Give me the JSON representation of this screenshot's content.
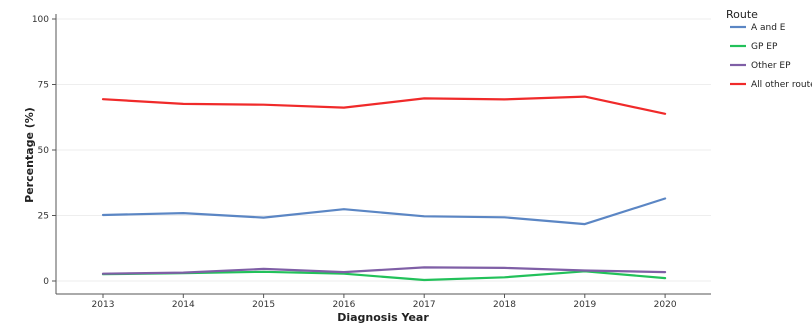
{
  "chart_data": {
    "type": "line",
    "xlabel": "Diagnosis Year",
    "ylabel": "Percentage (%)",
    "x": [
      "2013",
      "2014",
      "2015",
      "2016",
      "2017",
      "2018",
      "2019",
      "2020"
    ],
    "ylim": [
      0,
      100
    ],
    "yticks": [
      "0",
      "25",
      "50",
      "75",
      "100"
    ],
    "grid": "horizontal",
    "legend": {
      "title": "Route",
      "placement": "right"
    },
    "series": [
      {
        "name": "A and E",
        "color": "#5b86c4",
        "values": [
          25.2,
          25.9,
          24.2,
          27.4,
          24.7,
          24.3,
          21.7,
          31.5
        ]
      },
      {
        "name": "GP EP",
        "color": "#22c15a",
        "values": [
          2.6,
          3.0,
          3.5,
          2.8,
          0.4,
          1.4,
          3.7,
          1.1
        ]
      },
      {
        "name": "Other EP",
        "color": "#7f5fa6",
        "values": [
          2.8,
          3.2,
          4.6,
          3.4,
          5.2,
          5.0,
          4.0,
          3.4
        ]
      },
      {
        "name": "All other routes",
        "color": "#f02a2a",
        "values": [
          69.4,
          67.6,
          67.3,
          66.2,
          69.7,
          69.3,
          70.4,
          63.8
        ]
      }
    ]
  }
}
